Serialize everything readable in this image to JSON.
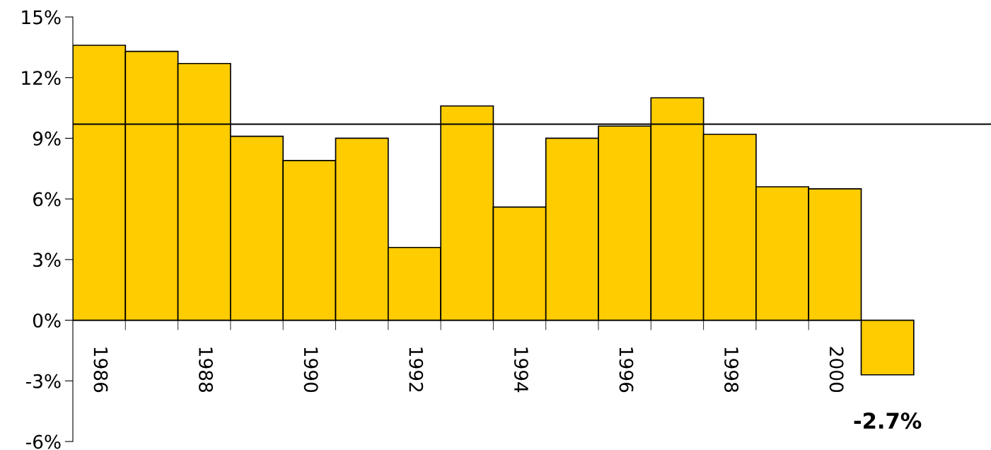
{
  "chart_data": {
    "type": "bar",
    "categories": [
      "1986",
      null,
      "1988",
      null,
      "1990",
      null,
      "1992",
      null,
      "1994",
      null,
      "1996",
      null,
      "1998",
      null,
      "2000",
      null
    ],
    "values": [
      13.6,
      13.3,
      12.7,
      9.1,
      7.9,
      9.0,
      3.6,
      10.6,
      5.6,
      9.0,
      9.6,
      11.0,
      9.2,
      6.6,
      6.5,
      -2.7
    ],
    "value_labels": [
      null,
      null,
      null,
      null,
      null,
      null,
      null,
      null,
      null,
      null,
      null,
      null,
      null,
      null,
      null,
      "-2.7%"
    ],
    "color": "#ffcc00",
    "ylim": [
      -6,
      15
    ],
    "yticks": [
      {
        "value": -6,
        "label": "-6%"
      },
      {
        "value": -3,
        "label": "-3%"
      },
      {
        "value": 0,
        "label": "0%"
      },
      {
        "value": 3,
        "label": "3%"
      },
      {
        "value": 6,
        "label": "6%"
      },
      {
        "value": 9,
        "label": "9%"
      },
      {
        "value": 12,
        "label": "12%"
      },
      {
        "value": 15,
        "label": "15%"
      }
    ],
    "ref_lines": [
      {
        "axis": "y",
        "value": 9.7,
        "label": null,
        "color": "#000000"
      }
    ],
    "grid": false,
    "legend": false
  }
}
